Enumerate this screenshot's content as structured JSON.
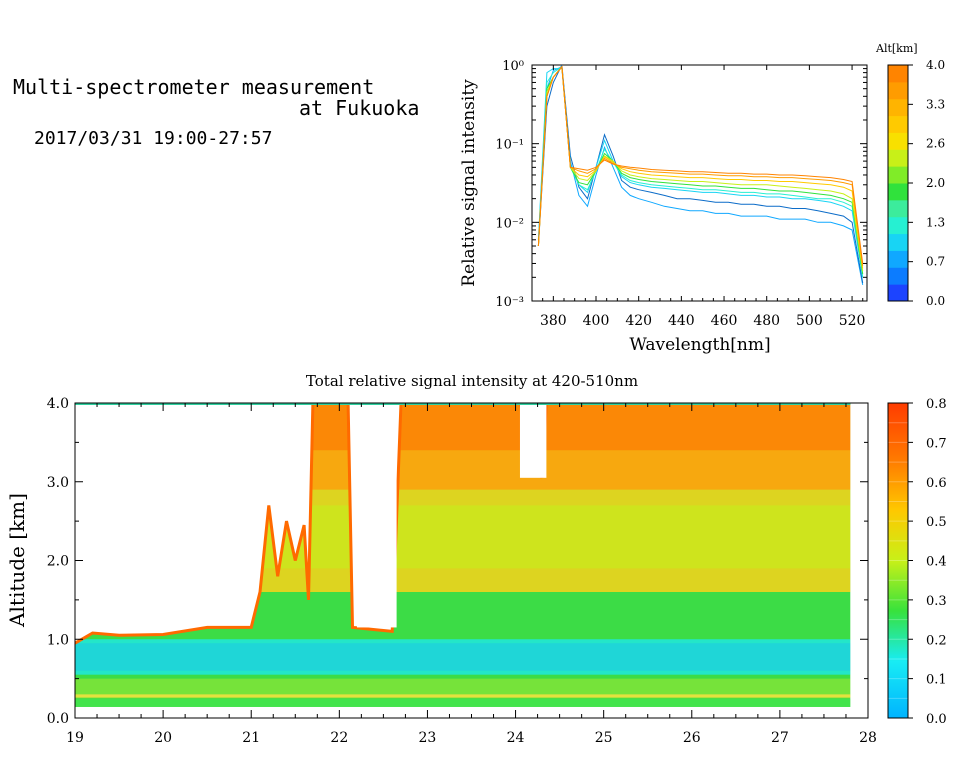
{
  "header": {
    "title_line1": "Multi-spectrometer measurement",
    "title_line2": "at Fukuoka",
    "date_range": "2017/03/31 19:00-27:57"
  },
  "chart_data": [
    {
      "type": "line",
      "xlabel": "Wavelength[nm]",
      "ylabel": "Relative signal intensity",
      "xlim": [
        370,
        527
      ],
      "ylim": [
        0.001,
        1
      ],
      "yscale": "log",
      "x_ticks": [
        "380",
        "400",
        "420",
        "440",
        "460",
        "480",
        "500",
        "520"
      ],
      "y_ticks": [
        "10⁻³",
        "10⁻²",
        "10⁻¹",
        "10⁰"
      ],
      "colorbar": {
        "title": "Alt[km]",
        "tick_labels": [
          "0.0",
          "0.7",
          "1.3",
          "2.0",
          "2.6",
          "3.3",
          "4.0"
        ],
        "colors": [
          "#1c44ff",
          "#0c7cff",
          "#10a8ff",
          "#18d4f4",
          "#26f0d2",
          "#3cec9c",
          "#30e23c",
          "#80ec28",
          "#c8f018",
          "#f8e000",
          "#ffca00",
          "#ffb400",
          "#ff9c00",
          "#ff8400"
        ]
      },
      "x": [
        373,
        377,
        380,
        384,
        388,
        392,
        396,
        400,
        404,
        408,
        412,
        416,
        420,
        426,
        432,
        438,
        444,
        450,
        456,
        462,
        468,
        474,
        480,
        486,
        492,
        498,
        504,
        510,
        516,
        520,
        525
      ],
      "series": [
        {
          "color": "#10a8ff",
          "values": [
            0.006,
            0.5,
            0.85,
            0.95,
            0.06,
            0.022,
            0.016,
            0.04,
            0.09,
            0.05,
            0.028,
            0.022,
            0.02,
            0.018,
            0.016,
            0.015,
            0.014,
            0.014,
            0.013,
            0.013,
            0.012,
            0.012,
            0.012,
            0.011,
            0.011,
            0.011,
            0.01,
            0.01,
            0.009,
            0.008,
            0.0016
          ]
        },
        {
          "color": "#0c6cc8",
          "values": [
            0.005,
            0.3,
            0.6,
            1.0,
            0.07,
            0.028,
            0.02,
            0.05,
            0.13,
            0.07,
            0.034,
            0.028,
            0.026,
            0.024,
            0.022,
            0.02,
            0.02,
            0.019,
            0.018,
            0.018,
            0.017,
            0.017,
            0.016,
            0.016,
            0.015,
            0.015,
            0.014,
            0.013,
            0.012,
            0.01,
            0.0017
          ]
        },
        {
          "color": "#18d4f4",
          "values": [
            0.006,
            0.8,
            0.9,
            0.9,
            0.055,
            0.03,
            0.024,
            0.05,
            0.11,
            0.06,
            0.038,
            0.032,
            0.03,
            0.028,
            0.027,
            0.026,
            0.025,
            0.024,
            0.024,
            0.023,
            0.022,
            0.022,
            0.021,
            0.021,
            0.02,
            0.02,
            0.019,
            0.018,
            0.016,
            0.014,
            0.002
          ]
        },
        {
          "color": "#26f0d2",
          "values": [
            0.005,
            0.6,
            0.8,
            0.95,
            0.05,
            0.03,
            0.026,
            0.045,
            0.085,
            0.058,
            0.04,
            0.034,
            0.032,
            0.03,
            0.029,
            0.028,
            0.027,
            0.026,
            0.026,
            0.025,
            0.024,
            0.024,
            0.023,
            0.023,
            0.022,
            0.021,
            0.02,
            0.02,
            0.018,
            0.016,
            0.002
          ]
        },
        {
          "color": "#30e23c",
          "values": [
            0.005,
            0.5,
            0.7,
            0.95,
            0.05,
            0.032,
            0.03,
            0.045,
            0.075,
            0.06,
            0.042,
            0.037,
            0.035,
            0.033,
            0.032,
            0.031,
            0.03,
            0.029,
            0.029,
            0.028,
            0.027,
            0.027,
            0.026,
            0.025,
            0.025,
            0.024,
            0.023,
            0.022,
            0.02,
            0.018,
            0.0022
          ]
        },
        {
          "color": "#c8f018",
          "values": [
            0.005,
            0.45,
            0.7,
            0.95,
            0.05,
            0.036,
            0.034,
            0.045,
            0.07,
            0.06,
            0.045,
            0.04,
            0.038,
            0.036,
            0.035,
            0.034,
            0.033,
            0.033,
            0.032,
            0.031,
            0.03,
            0.03,
            0.03,
            0.029,
            0.028,
            0.027,
            0.026,
            0.025,
            0.023,
            0.02,
            0.0024
          ]
        },
        {
          "color": "#ffca00",
          "values": [
            0.005,
            0.4,
            0.7,
            0.95,
            0.05,
            0.04,
            0.038,
            0.046,
            0.068,
            0.058,
            0.048,
            0.044,
            0.042,
            0.04,
            0.039,
            0.038,
            0.037,
            0.037,
            0.036,
            0.035,
            0.035,
            0.034,
            0.034,
            0.033,
            0.033,
            0.032,
            0.031,
            0.03,
            0.028,
            0.025,
            0.0026
          ]
        },
        {
          "color": "#ff9c00",
          "values": [
            0.005,
            0.4,
            0.7,
            0.95,
            0.05,
            0.045,
            0.042,
            0.048,
            0.065,
            0.056,
            0.05,
            0.048,
            0.046,
            0.044,
            0.043,
            0.042,
            0.041,
            0.041,
            0.04,
            0.039,
            0.039,
            0.038,
            0.038,
            0.037,
            0.037,
            0.036,
            0.035,
            0.034,
            0.032,
            0.03,
            0.0028
          ]
        },
        {
          "color": "#ff8400",
          "values": [
            0.005,
            0.4,
            0.7,
            0.95,
            0.05,
            0.048,
            0.046,
            0.05,
            0.062,
            0.055,
            0.052,
            0.05,
            0.049,
            0.047,
            0.046,
            0.045,
            0.044,
            0.044,
            0.043,
            0.042,
            0.042,
            0.041,
            0.041,
            0.04,
            0.04,
            0.039,
            0.038,
            0.037,
            0.035,
            0.033,
            0.003
          ]
        }
      ]
    },
    {
      "type": "heatmap",
      "title": "Total relative signal intensity at 420-510nm",
      "ylabel": "Altitude [km]",
      "xlim": [
        19,
        28
      ],
      "ylim": [
        0,
        4
      ],
      "zlim": [
        0,
        0.8
      ],
      "x_ticks": [
        "19",
        "20",
        "21",
        "22",
        "23",
        "24",
        "25",
        "26",
        "27",
        "28"
      ],
      "y_ticks": [
        "0.0",
        "1.0",
        "2.0",
        "3.0",
        "4.0"
      ],
      "colorbar": {
        "tick_labels": [
          "0.0",
          "0.1",
          "0.2",
          "0.3",
          "0.4",
          "0.5",
          "0.6",
          "0.7",
          "0.8"
        ]
      },
      "data_top_km": [
        [
          19.0,
          0.95
        ],
        [
          19.2,
          1.08
        ],
        [
          19.5,
          1.05
        ],
        [
          20.0,
          1.06
        ],
        [
          20.5,
          1.15
        ],
        [
          21.0,
          1.15
        ],
        [
          21.1,
          1.6
        ],
        [
          21.2,
          2.7
        ],
        [
          21.3,
          1.8
        ],
        [
          21.4,
          2.5
        ],
        [
          21.5,
          2.0
        ],
        [
          21.6,
          2.45
        ],
        [
          21.65,
          1.5
        ],
        [
          21.7,
          4.0
        ],
        [
          22.1,
          4.0
        ],
        [
          22.15,
          1.15
        ],
        [
          22.6,
          1.1
        ],
        [
          22.7,
          4.0
        ],
        [
          24.0,
          4.0
        ],
        [
          24.05,
          4.0
        ],
        [
          24.3,
          3.05
        ],
        [
          24.35,
          4.0
        ],
        [
          27.8,
          4.0
        ]
      ],
      "data_bottom_km": 0.14,
      "data_x_end": 27.8,
      "gaps": [
        [
          22.2,
          22.65,
          1.15,
          4.0
        ],
        [
          24.05,
          24.35,
          3.05,
          4.0
        ]
      ]
    }
  ]
}
